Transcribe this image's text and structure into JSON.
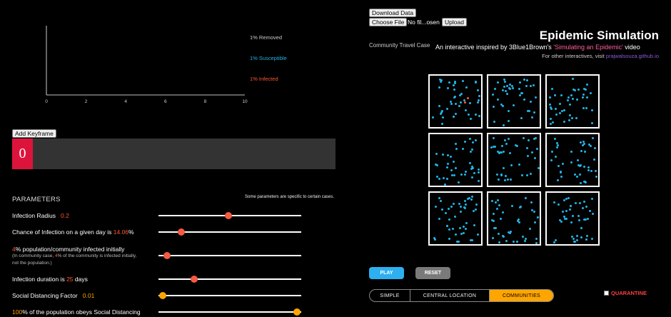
{
  "chart_data": {
    "type": "line",
    "x": [],
    "series": [
      {
        "name": "Removed",
        "values": []
      },
      {
        "name": "Susceptible",
        "values": []
      },
      {
        "name": "Infected",
        "values": []
      }
    ],
    "xlim": [
      0,
      10
    ],
    "xticks": [
      "0",
      "2",
      "4",
      "6",
      "8",
      "10"
    ],
    "legend": [
      {
        "label": "1% Removed",
        "color": "#cccccc"
      },
      {
        "label": "1% Susceptible",
        "color": "#1fb5ea"
      },
      {
        "label": "1% Infected",
        "color": "#ff5733"
      }
    ],
    "legend_placement": "right",
    "grid": false
  },
  "keyframe": {
    "add_label": "Add Keyframe",
    "current": "0",
    "marker_color": "#dc143c"
  },
  "parameters": {
    "title": "PARAMETERS",
    "note": "Some parameters are specific to certain cases.",
    "items": [
      {
        "pre": "Infection Radius",
        "value": "0.2",
        "post": "",
        "slider": 0.49,
        "color": "red"
      },
      {
        "pre": "Chance of Infection on a given day is ",
        "value": "14.06",
        "post": "%",
        "slider": 0.16,
        "color": "red"
      },
      {
        "pre": "",
        "value": "4",
        "post": "% population/community infected initially",
        "slider": 0.06,
        "color": "red",
        "sub_pre": "(In community case, ",
        "sub_value": "4",
        "sub_post": "% of the community is infected initially,",
        "sub_line2": "not the population.)"
      },
      {
        "pre": "Infection duration is ",
        "value": "25",
        "post": " days",
        "slider": 0.25,
        "color": "red"
      },
      {
        "pre": "Social Distancing Factor",
        "value": "0.01",
        "post": "",
        "slider": 0.03,
        "color": "orange"
      },
      {
        "pre": "",
        "value": "100",
        "post": "% of the population obeys Social Distancing",
        "slider": 0.97,
        "color": "orange"
      }
    ]
  },
  "file": {
    "download_label": "Download Data",
    "choose_label": "Choose File",
    "file_name": "No fil...osen",
    "upload_label": "Upload"
  },
  "header": {
    "title": "Epidemic Simulation",
    "case_name": "Community Travel Case",
    "subtitle_pre": "An interactive inspired by 3Blue1Brown's ",
    "subtitle_link": "'Simulating an Epidemic'",
    "subtitle_post": " video",
    "other_pre": "For other interactives, visit ",
    "other_link": "prajwalsouza.github.io"
  },
  "colors": {
    "susceptible": "#22b5e6",
    "infected": "#ff5a3c",
    "accent": "#ffa500",
    "play": "#2db0f0"
  },
  "controls": {
    "play": "PLAY",
    "reset": "RESET",
    "modes": [
      "SIMPLE",
      "CENTRAL LOCATION",
      "COMMUNITIES"
    ],
    "active_mode": 2,
    "quarantine": "QUARANTINE",
    "quarantine_checked": false
  }
}
